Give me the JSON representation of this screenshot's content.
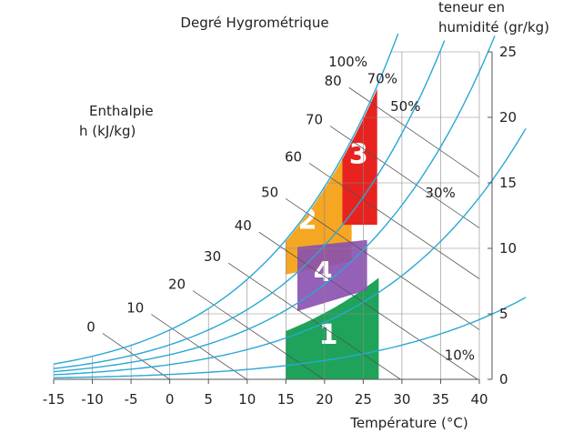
{
  "chart_data": {
    "type": "psychrometric",
    "title": "Degré Hygrométrique",
    "x_axis": {
      "label": "Température (°C)",
      "range": [
        -15,
        40
      ],
      "ticks": [
        -15,
        -10,
        -5,
        0,
        5,
        10,
        15,
        20,
        25,
        30,
        35,
        40
      ]
    },
    "y_axis": {
      "label_line1": "teneur en",
      "label_line2": "humidité (gr/kg)",
      "range": [
        0,
        25
      ],
      "ticks": [
        0,
        5,
        10,
        15,
        20,
        25
      ]
    },
    "enthalpy": {
      "label_line1": "Enthalpie",
      "label_line2": "h (kJ/kg)",
      "values": [
        0,
        10,
        20,
        30,
        40,
        50,
        60,
        70,
        80
      ]
    },
    "rh_curves": [
      {
        "label": "100%",
        "rh": 1.0
      },
      {
        "label": "70%",
        "rh": 0.7
      },
      {
        "label": "50%",
        "rh": 0.5
      },
      {
        "label": "30%",
        "rh": 0.3
      },
      {
        "label": "10%",
        "rh": 0.1
      }
    ],
    "zones": [
      {
        "label": "1",
        "color": "#1fa35a"
      },
      {
        "label": "2",
        "color": "#f5a623"
      },
      {
        "label": "3",
        "color": "#e8231f"
      },
      {
        "label": "4",
        "color": "#8a4fb0"
      }
    ],
    "colors": {
      "rh_curve": "#2aa8d4",
      "enthalpy_line": "#555555",
      "grid": "#888888"
    }
  }
}
